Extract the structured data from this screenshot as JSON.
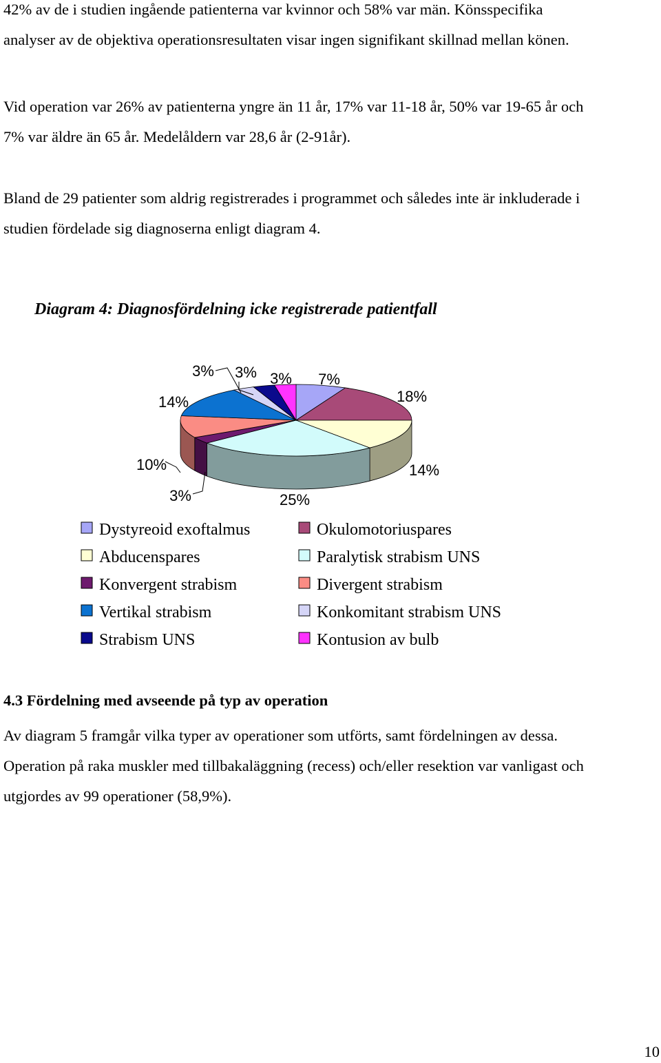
{
  "paragraphs": [
    [
      "42% av de i studien ingående patienterna var kvinnor och 58% var män. Könsspecifika",
      "analyser av de objektiva operationsresultaten visar ingen signifikant skillnad mellan könen."
    ],
    [
      "Vid operation var 26% av patienterna yngre än 11 år, 17% var 11-18 år, 50% var 19-65 år och",
      "7% var äldre än 65 år. Medelåldern var 28,6 år (2-91år)."
    ],
    [
      "Bland de 29 patienter som aldrig registrerades i programmet och således inte är inkluderade i",
      "studien fördelade sig diagnoserna enligt diagram 4."
    ]
  ],
  "diagram_caption": "Diagram 4: Diagnosfördelning icke registrerade patientfall",
  "chart_data": {
    "type": "pie",
    "title": "",
    "style": "3d-tilted",
    "series": [
      {
        "name": "Dystyreoid exoftalmus",
        "value": 7,
        "label": "7%",
        "color": "#a6a6f7"
      },
      {
        "name": "Okulomotoriuspares",
        "value": 18,
        "label": "18%",
        "color": "#a84a78"
      },
      {
        "name": "Abducenspares",
        "value": 14,
        "label": "14%",
        "color": "#ffffd4"
      },
      {
        "name": "Paralytisk strabism UNS",
        "value": 25,
        "label": "25%",
        "color": "#d2fbfb"
      },
      {
        "name": "Konvergent strabism",
        "value": 3,
        "label": "3%",
        "color": "#6e1a6e"
      },
      {
        "name": "Divergent strabism",
        "value": 10,
        "label": "10%",
        "color": "#fa8c84"
      },
      {
        "name": "Vertikal strabism",
        "value": 14,
        "label": "14%",
        "color": "#0c72d0"
      },
      {
        "name": "Konkomitant strabism UNS",
        "value": 3,
        "label": "3%",
        "color": "#d5d5f7"
      },
      {
        "name": "Strabism UNS",
        "value": 3,
        "label": "3%",
        "color": "#0a0a8c"
      },
      {
        "name": "Kontusion av bulb",
        "value": 3,
        "label": "3%",
        "color": "#ff33ff"
      }
    ],
    "legend": {
      "placement": "bottom",
      "columns": [
        [
          "Dystyreoid exoftalmus",
          "Abducenspares",
          "Konvergent strabism",
          "Vertikal strabism",
          "Strabism UNS"
        ],
        [
          "Okulomotoriuspares",
          "Paralytisk strabism UNS",
          "Divergent strabism",
          "Konkomitant strabism UNS",
          "Kontusion av bulb"
        ]
      ]
    }
  },
  "section_heading": "4.3 Fördelning med avseende på typ av operation",
  "paragraphs_after": [
    "Av diagram 5 framgår vilka typer av operationer som utförts, samt fördelningen av dessa.",
    "Operation på raka muskler med tillbakaläggning (recess) och/eller resektion var vanligast och",
    "utgjordes av 99 operationer (58,9%)."
  ],
  "page_number": "10"
}
